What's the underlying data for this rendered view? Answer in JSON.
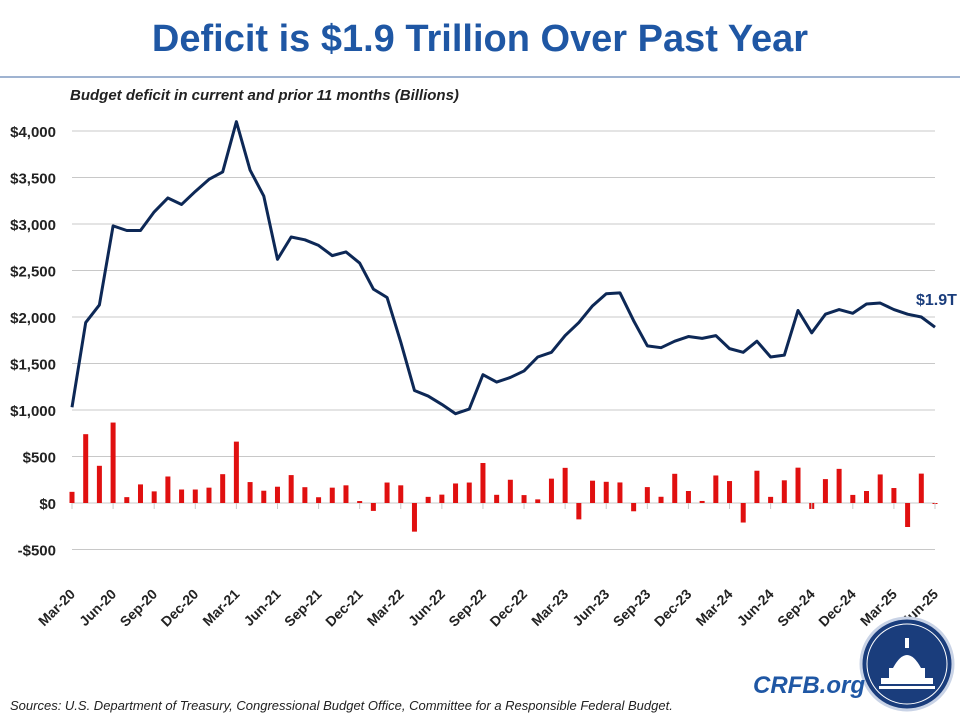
{
  "title": "Deficit is $1.9 Trillion Over Past Year",
  "brand": "CRFB.org",
  "sources": "Sources: U.S. Department of Treasury, Congressional Budget Office, Committee for a Responsible Federal Budget.",
  "colors": {
    "title": "#1f57a4",
    "line": "#0d2856",
    "bar": "#e01010",
    "grid": "#c8c8c8",
    "logo": "#1a3d7c"
  },
  "logo_icon": "capitol-dome-seal-icon",
  "chart_data": {
    "type": "line+bar",
    "title": "Budget deficit in current and prior 11 months (Billions)",
    "ylim": [
      -500,
      4000
    ],
    "yticks": [
      -500,
      0,
      500,
      1000,
      1500,
      2000,
      2500,
      3000,
      3500,
      4000
    ],
    "ytick_labels": [
      "-$500",
      "$0",
      "$500",
      "$1,000",
      "$1,500",
      "$2,000",
      "$2,500",
      "$3,000",
      "$3,500",
      "$4,000"
    ],
    "grid": true,
    "xtick_labels": [
      "Mar-20",
      "Jun-20",
      "Sep-20",
      "Dec-20",
      "Mar-21",
      "Jun-21",
      "Sep-21",
      "Dec-21",
      "Mar-22",
      "Jun-22",
      "Sep-22",
      "Dec-22",
      "Mar-23",
      "Jun-23",
      "Sep-23",
      "Dec-23",
      "Mar-24",
      "Jun-24",
      "Sep-24",
      "Dec-24",
      "Mar-25",
      "Jun-25"
    ],
    "x_range": [
      "Mar-20",
      "Jun-25"
    ],
    "annotation": "$1.9T",
    "series": [
      {
        "type": "line",
        "values": [
          1030,
          1940,
          2130,
          2980,
          2930,
          2930,
          3130,
          3280,
          3210,
          3350,
          3480,
          3560,
          4100,
          3580,
          3300,
          2620,
          2860,
          2830,
          2770,
          2660,
          2700,
          2580,
          2300,
          2210,
          1730,
          1210,
          1150,
          1060,
          960,
          1010,
          1380,
          1300,
          1350,
          1420,
          1570,
          1620,
          1800,
          1940,
          2120,
          2250,
          2260,
          1960,
          1690,
          1670,
          1740,
          1790,
          1770,
          1800,
          1660,
          1620,
          1740,
          1570,
          1590,
          2070,
          1830,
          2030,
          2080,
          2040,
          2140,
          2150,
          2080,
          2030,
          2000,
          1890
        ]
      },
      {
        "type": "bar",
        "values": [
          120,
          740,
          400,
          865,
          63,
          200,
          125,
          285,
          145,
          145,
          165,
          310,
          660,
          225,
          132,
          175,
          300,
          170,
          62,
          165,
          190,
          21,
          -85,
          220,
          190,
          -308,
          66,
          90,
          210,
          220,
          430,
          88,
          250,
          85,
          39,
          262,
          378,
          -176,
          240,
          228,
          221,
          -89,
          171,
          67,
          314,
          129,
          22,
          296,
          236,
          -210,
          347,
          66,
          244,
          380,
          -64,
          257,
          367,
          87,
          129,
          307,
          161,
          -258,
          316,
          -10
        ]
      }
    ]
  }
}
